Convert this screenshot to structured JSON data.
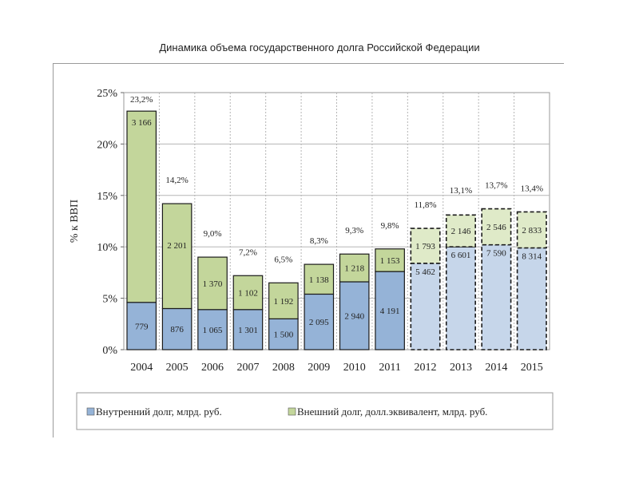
{
  "title": "Динамика объема государственного долга Российской Федерации",
  "chart_data": {
    "type": "bar",
    "stacked": true,
    "ylabel": "% к ВВП",
    "ylim": [
      0,
      25
    ],
    "y_ticks": [
      "0%",
      "5%",
      "10%",
      "15%",
      "20%",
      "25%"
    ],
    "grid": true,
    "legend_position": "bottom",
    "categories": [
      "2004",
      "2005",
      "2006",
      "2007",
      "2008",
      "2009",
      "2010",
      "2011",
      "2012",
      "2013",
      "2014",
      "2015"
    ],
    "forecast_from_index": 8,
    "totals_pct": [
      23.2,
      14.2,
      9.0,
      7.2,
      6.5,
      8.3,
      9.3,
      9.8,
      11.8,
      13.1,
      13.7,
      13.4
    ],
    "total_labels": [
      "23,2%",
      "14,2%",
      "9,0%",
      "7,2%",
      "6,5%",
      "8,3%",
      "9,3%",
      "9,8%",
      "11,8%",
      "13,1%",
      "13,7%",
      "13,4%"
    ],
    "series": [
      {
        "name": "Внутренний долг, млрд. руб.",
        "color": "#95b3d7",
        "forecast_color": "#c6d6ea",
        "values_pct": [
          4.6,
          4.0,
          3.9,
          3.9,
          3.0,
          5.4,
          6.6,
          7.6,
          8.4,
          10.0,
          10.2,
          9.9
        ],
        "labels": [
          "779",
          "876",
          "1 065",
          "1 301",
          "1 500",
          "2 095",
          "2 940",
          "4 191",
          "5 462",
          "6 601",
          "7 590",
          "8 314"
        ]
      },
      {
        "name": "Внешний долг, долл.эквивалент, млрд. руб.",
        "color": "#c3d69b",
        "forecast_color": "#dfeac8",
        "values_pct": [
          18.6,
          10.2,
          5.1,
          3.3,
          3.5,
          2.9,
          2.7,
          2.2,
          3.4,
          3.1,
          3.5,
          3.5
        ],
        "labels": [
          "3 166",
          "2 201",
          "1 370",
          "1 102",
          "1 192",
          "1 138",
          "1 218",
          "1 153",
          "1 793",
          "2 146",
          "2 546",
          "2 833"
        ]
      }
    ]
  }
}
